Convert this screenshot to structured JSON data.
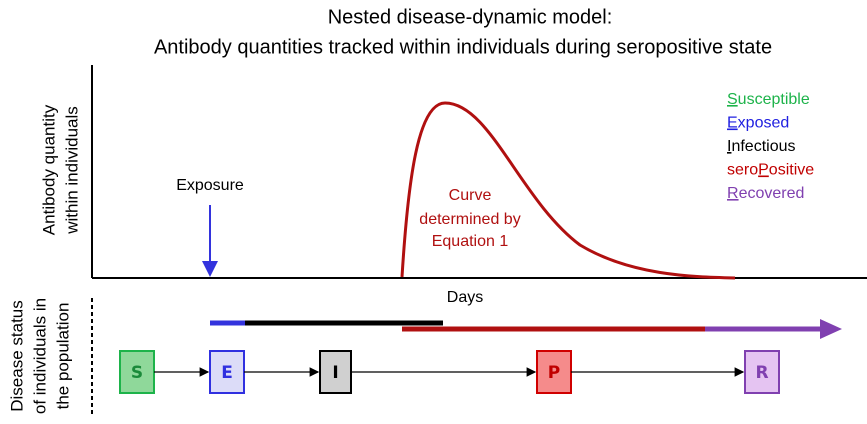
{
  "title": {
    "line1": "Nested disease-dynamic model:",
    "line2": "Antibody quantities tracked within individuals during seropositive state"
  },
  "y_axis_label": [
    "Antibody quantity",
    "within individuals"
  ],
  "x_axis_label": "Days",
  "exposure_label": "Exposure",
  "curve_label": [
    "Curve",
    "determined by",
    "Equation 1"
  ],
  "status_label": [
    "Disease status",
    "of individuals in",
    "the population"
  ],
  "legend": [
    {
      "prefix": "",
      "key": "S",
      "suffix": "usceptible"
    },
    {
      "prefix": "",
      "key": "E",
      "suffix": "xposed"
    },
    {
      "prefix": "",
      "key": "I",
      "suffix": "nfectious"
    },
    {
      "prefix": "sero",
      "key": "P",
      "suffix": "ositive"
    },
    {
      "prefix": "",
      "key": "R",
      "suffix": "ecovered"
    }
  ],
  "nodes": [
    {
      "label": "S"
    },
    {
      "label": "E"
    },
    {
      "label": "I"
    },
    {
      "label": "P"
    },
    {
      "label": "R"
    }
  ]
}
